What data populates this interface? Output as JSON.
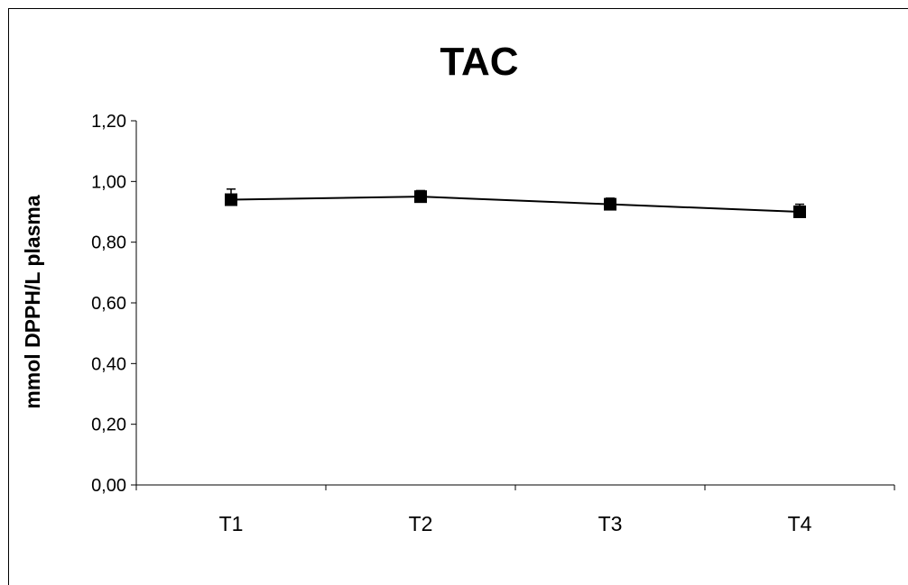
{
  "chart_data": {
    "type": "line",
    "title": "TAC",
    "xlabel": "",
    "ylabel": "mmol DPPH/L plasma",
    "categories": [
      "T1",
      "T2",
      "T3",
      "T4"
    ],
    "yticks": [
      "0,00",
      "0,20",
      "0,40",
      "0,60",
      "0,80",
      "1,00",
      "1,20"
    ],
    "ylim": [
      0,
      1.2
    ],
    "series": [
      {
        "values": [
          0.94,
          0.95,
          0.925,
          0.9
        ],
        "error": [
          0.035,
          0.02,
          0.02,
          0.025
        ],
        "color": "#000000",
        "marker": "square"
      }
    ],
    "grid": false,
    "legend": "none"
  }
}
